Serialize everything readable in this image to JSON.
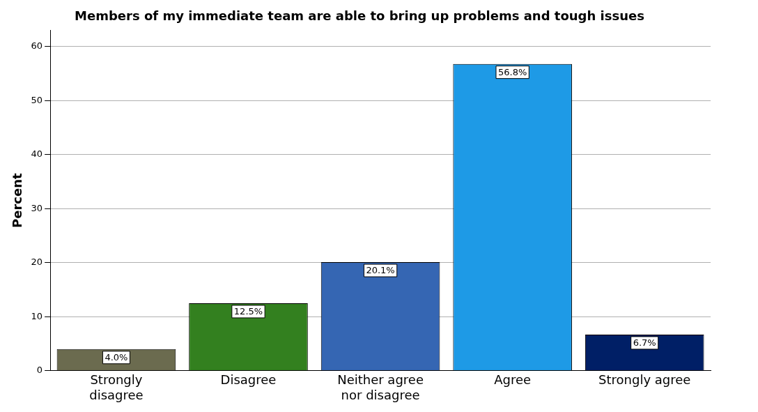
{
  "chart_data": {
    "type": "bar",
    "title": "Members of my immediate team are able to bring up problems and tough issues",
    "ylabel": "Percent",
    "categories": [
      "Strongly disagree",
      "Disagree",
      "Neither agree nor disagree",
      "Agree",
      "Strongly agree"
    ],
    "values": [
      4.0,
      12.5,
      20.1,
      56.8,
      6.7
    ],
    "colors": [
      "#6b6b4f",
      "#33801f",
      "#3566b3",
      "#1e9ae6",
      "#001f66"
    ],
    "value_labels": [
      "4.0%",
      "12.5%",
      "20.1%",
      "56.8%",
      "6.7%"
    ],
    "ylim": [
      0,
      63
    ],
    "yticks": [
      0,
      10,
      20,
      30,
      40,
      50,
      60
    ],
    "grid": "y",
    "legend": false
  }
}
